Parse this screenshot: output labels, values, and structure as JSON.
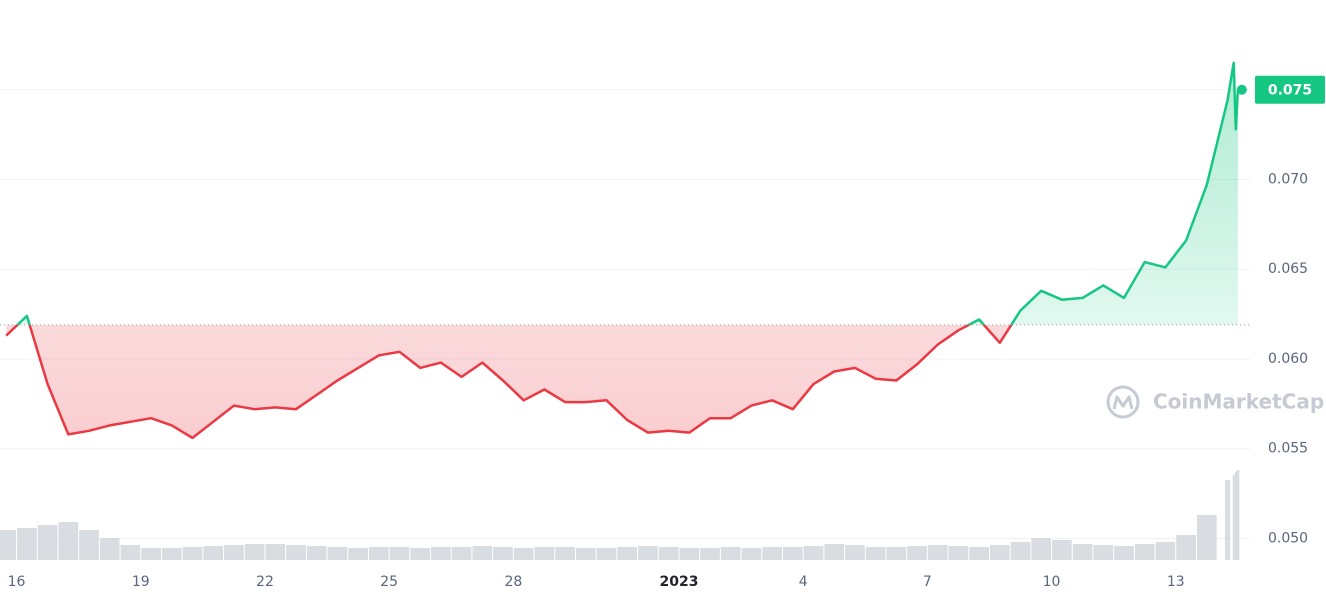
{
  "chart_data": {
    "type": "line",
    "x": [
      15.75,
      16.25,
      16.75,
      17.25,
      17.75,
      18.25,
      18.75,
      19.25,
      19.75,
      20.25,
      20.75,
      21.25,
      21.75,
      22.25,
      22.75,
      23.25,
      23.75,
      24.25,
      24.75,
      25.25,
      25.75,
      26.25,
      26.75,
      27.25,
      27.75,
      28.25,
      28.75,
      29.25,
      29.75,
      30.25,
      30.75,
      31.25,
      31.75,
      32.25,
      32.75,
      33.25,
      33.75,
      34.25,
      34.75,
      35.25,
      35.75,
      36.25,
      36.75,
      37.25,
      37.75,
      38.25,
      38.75,
      39.25,
      39.75,
      40.25,
      40.75,
      41.25,
      41.75,
      42.25,
      42.75,
      43.25,
      43.75,
      44.25,
      44.75,
      45.25,
      45.4,
      45.45,
      45.5
    ],
    "series": [
      {
        "name": "Price",
        "color": "#16c784",
        "values": [
          0.0613,
          0.0624,
          0.0586,
          0.0558,
          0.056,
          0.0563,
          0.0565,
          0.0567,
          0.0563,
          0.0556,
          0.0565,
          0.0574,
          0.0572,
          0.0573,
          0.0572,
          0.058,
          0.0588,
          0.0595,
          0.0602,
          0.0604,
          0.0595,
          0.0598,
          0.059,
          0.0598,
          0.0588,
          0.0577,
          0.0583,
          0.0576,
          0.0576,
          0.0577,
          0.0566,
          0.0559,
          0.056,
          0.0559,
          0.0567,
          0.0567,
          0.0574,
          0.0577,
          0.0572,
          0.0586,
          0.0593,
          0.0595,
          0.0589,
          0.0588,
          0.0597,
          0.0608,
          0.0616,
          0.0622,
          0.0609,
          0.0627,
          0.0638,
          0.0633,
          0.0634,
          0.0641,
          0.0634,
          0.0654,
          0.0651,
          0.0666,
          0.0697,
          0.0744,
          0.0765,
          0.0728,
          0.075
        ]
      },
      {
        "name": "Volume",
        "color": "#cfd3da",
        "values": [
          30,
          32,
          35,
          38,
          30,
          22,
          15,
          12,
          12,
          13,
          14,
          15,
          16,
          16,
          15,
          14,
          13,
          12,
          13,
          13,
          12,
          13,
          13,
          14,
          13,
          12,
          13,
          13,
          12,
          12,
          13,
          14,
          13,
          12,
          12,
          13,
          12,
          13,
          13,
          14,
          16,
          15,
          13,
          13,
          14,
          15,
          14,
          13,
          15,
          18,
          22,
          20,
          16,
          15,
          14,
          16,
          18,
          25,
          45,
          80,
          85,
          88,
          90
        ]
      }
    ],
    "baseline": 0.0619,
    "down_color": "#ea3943",
    "current_price": 0.075,
    "watermark": "CoinMarketCap",
    "xlim": [
      15.6,
      45.6
    ],
    "xticks": [
      16,
      19,
      22,
      25,
      28,
      {
        "value": 32,
        "label": "2023"
      },
      {
        "value": 35,
        "label": "4"
      },
      {
        "value": 38,
        "label": "7"
      },
      {
        "value": 41,
        "label": "10"
      },
      {
        "value": 44,
        "label": "13"
      }
    ],
    "ylim": [
      0.0488,
      0.08
    ],
    "yticks": [
      {
        "value": 0.05,
        "label": "0.050"
      },
      0.055,
      {
        "value": 0.06,
        "label": "0.060"
      },
      0.065,
      {
        "value": 0.07,
        "label": "0.070"
      },
      0.075
    ],
    "volume_lim": [
      0,
      100
    ],
    "grid": true
  }
}
